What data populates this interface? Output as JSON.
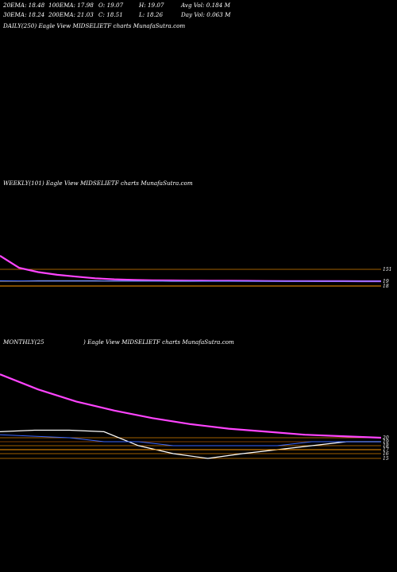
{
  "stats": [
    {
      "id": "ema20",
      "text": "20EMA: 18.48"
    },
    {
      "id": "ema100",
      "text": "100EMA: 17.98"
    },
    {
      "id": "open",
      "text": "O: 19.07"
    },
    {
      "id": "high",
      "text": "H: 19.07"
    },
    {
      "id": "avgvol",
      "text": "Avg Vol: 0.184  M"
    },
    {
      "id": "ema30",
      "text": "30EMA: 18.24"
    },
    {
      "id": "ema200",
      "text": "200EMA: 21.03"
    },
    {
      "id": "close",
      "text": "C: 18.51"
    },
    {
      "id": "low",
      "text": "L: 18.26"
    },
    {
      "id": "dayvol",
      "text": "Day Vol: 0.063  M"
    }
  ],
  "headers": {
    "daily": "DAILY(250) Eagle   View  MIDSELIETF charts MunafaSutra.com",
    "weekly": "WEEKLY(101) Eagle   View  MIDSELIETF charts MunafaSutra.com",
    "monthly_left": "MONTHLY(25",
    "monthly_right": ") Eagle   View  MIDSELIETF charts MunafaSutra.com"
  },
  "chart_data": [
    {
      "type": "line",
      "panel": "daily",
      "series": []
    },
    {
      "type": "line",
      "panel": "weekly",
      "y_tick_labels": [
        "151",
        "19",
        "18"
      ],
      "levels": [
        151,
        19,
        18
      ],
      "series": [
        {
          "color": "#ff44ff",
          "role": "long-ema",
          "values": [
            160,
            152,
            120,
            90,
            70,
            52,
            40,
            34,
            30,
            28,
            26,
            25,
            24,
            23,
            22,
            21,
            21,
            20,
            20,
            19,
            19
          ]
        },
        {
          "color": "#ffffff",
          "role": "price",
          "values": [
            22,
            22,
            23,
            23,
            23,
            23,
            22,
            22,
            21,
            19,
            19,
            19,
            19,
            19,
            19,
            19,
            19,
            19,
            19,
            19,
            19
          ]
        },
        {
          "color": "#3a66ff",
          "role": "ema",
          "values": [
            24,
            23,
            22,
            22,
            21,
            21,
            21,
            20,
            20,
            20,
            20,
            19,
            19,
            19,
            19,
            19,
            19,
            19,
            19,
            19,
            19
          ]
        },
        {
          "color": "#ff9900",
          "role": "support",
          "values": [
            18,
            18,
            18,
            18,
            18,
            18,
            18,
            18,
            18,
            18,
            18,
            18,
            18,
            18,
            18,
            18,
            18,
            18,
            18,
            18,
            18
          ]
        }
      ]
    },
    {
      "type": "line",
      "panel": "monthly",
      "y_tick_labels": [
        "20",
        "19",
        "18",
        "17",
        "16",
        "15"
      ],
      "levels": [
        20,
        19,
        18,
        17,
        16,
        15
      ],
      "series": [
        {
          "color": "#ff44ff",
          "role": "long-ema",
          "values": [
            62,
            52,
            44,
            38,
            33,
            29,
            26,
            24,
            22,
            21,
            20
          ]
        },
        {
          "color": "#ffffff",
          "role": "price",
          "values": [
            24,
            25,
            25,
            24,
            18,
            16,
            15,
            16,
            17,
            18,
            19,
            19
          ]
        },
        {
          "color": "#3a66ff",
          "role": "ema",
          "values": [
            22,
            21,
            20,
            19,
            19,
            18,
            18,
            18,
            18,
            19,
            19,
            19
          ]
        },
        {
          "color": "#ff9900",
          "role": "support",
          "values": [
            17,
            17,
            17,
            17,
            17,
            17,
            17,
            17,
            17,
            17,
            17,
            17
          ]
        }
      ]
    }
  ]
}
